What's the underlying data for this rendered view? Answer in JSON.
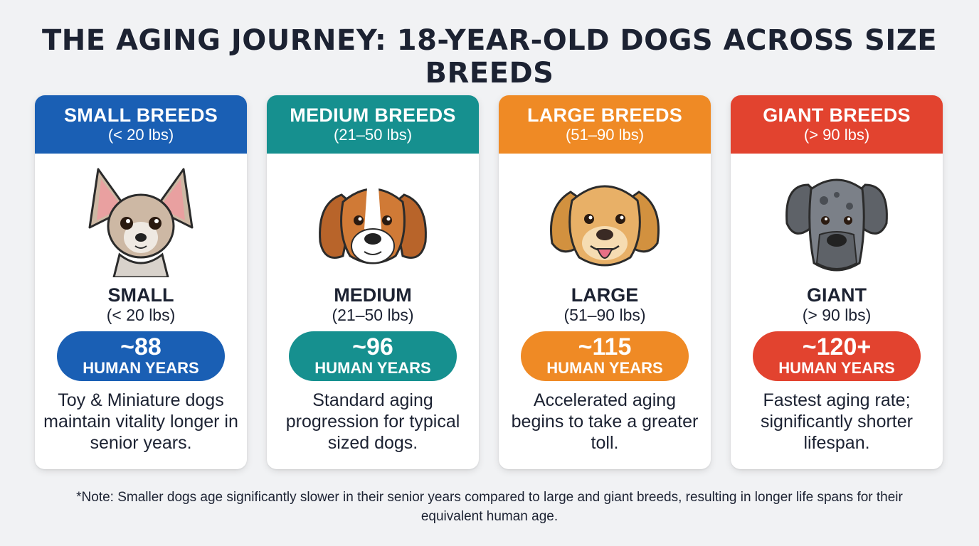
{
  "title": "THE AGING JOURNEY: 18-YEAR-OLD DOGS ACROSS SIZE BREEDS",
  "cards": [
    {
      "header_name": "SMALL BREEDS",
      "header_range": "(< 20 lbs)",
      "size_name": "SMALL",
      "size_range": "(< 20 lbs)",
      "human_years_value": "~88",
      "human_years_label": "HUMAN YEARS",
      "description": "Toy & Miniature dogs maintain vitality longer in senior years.",
      "color": "#1a5fb4",
      "dog_icon": "chihuahua-icon"
    },
    {
      "header_name": "MEDIUM BREEDS",
      "header_range": "(21–50 lbs)",
      "size_name": "MEDIUM",
      "size_range": "(21–50 lbs)",
      "human_years_value": "~96",
      "human_years_label": "HUMAN YEARS",
      "description": "Standard aging progression for typical sized dogs.",
      "color": "#16908f",
      "dog_icon": "beagle-icon"
    },
    {
      "header_name": "LARGE BREEDS",
      "header_range": "(51–90 lbs)",
      "size_name": "LARGE",
      "size_range": "(51–90 lbs)",
      "human_years_value": "~115",
      "human_years_label": "HUMAN YEARS",
      "description": "Accelerated aging begins to take a greater toll.",
      "color": "#ef8a25",
      "dog_icon": "golden-retriever-icon"
    },
    {
      "header_name": "GIANT BREEDS",
      "header_range": "(> 90 lbs)",
      "size_name": "GIANT",
      "size_range": "(> 90 lbs)",
      "human_years_value": "~120+",
      "human_years_label": "HUMAN YEARS",
      "description": "Fastest aging rate; significantly shorter lifespan.",
      "color": "#e2432f",
      "dog_icon": "great-dane-icon"
    }
  ],
  "note": "*Note: Smaller dogs age significantly slower in their senior years compared to large and giant breeds, resulting in longer life spans for their equivalent human age."
}
